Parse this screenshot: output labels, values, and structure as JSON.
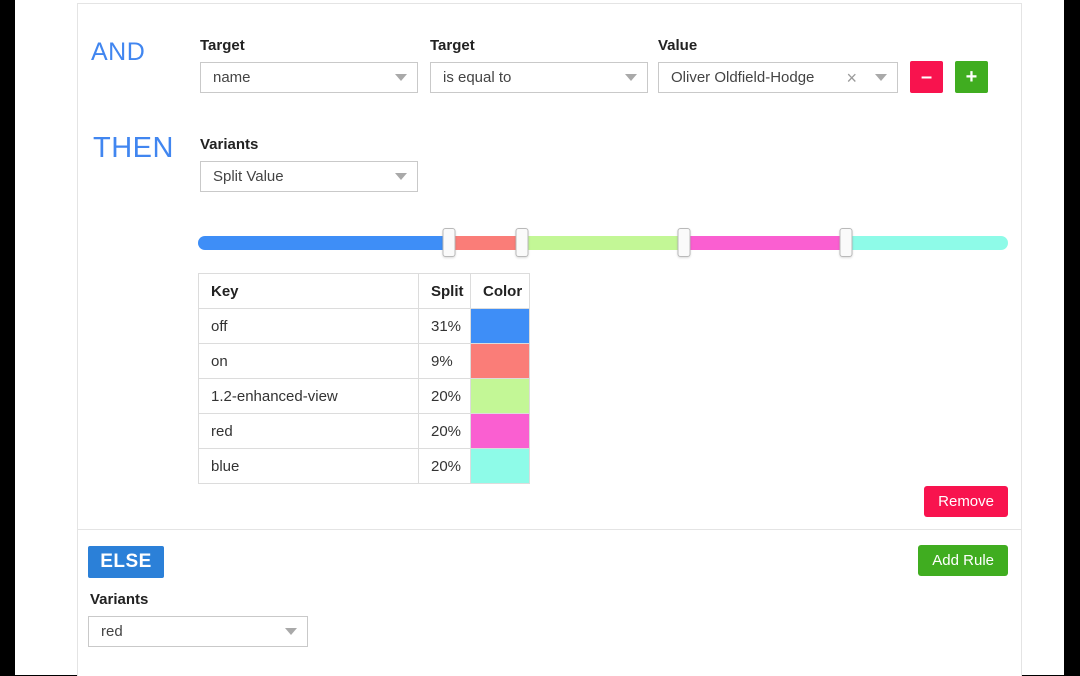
{
  "colors": {
    "accent_text_blue": "#4186f0",
    "else_badge_blue": "#2b80d8",
    "danger_red": "#f8134e",
    "success_green": "#40ad20"
  },
  "rule": {
    "and_label": "AND",
    "condition": {
      "fields": [
        {
          "label": "Target",
          "value": "name",
          "clearable": false
        },
        {
          "label": "Target",
          "value": "is equal to",
          "clearable": false
        },
        {
          "label": "Value",
          "value": "Oliver Oldfield-Hodge",
          "clearable": true
        }
      ],
      "remove_condition_label": "–",
      "add_condition_label": "+"
    },
    "then_label": "THEN",
    "variants_label": "Variants",
    "variants_value": "Split Value",
    "split_table": {
      "headers": [
        "Key",
        "Split",
        "Color"
      ],
      "rows": [
        {
          "key": "off",
          "split": "31%",
          "percent": 31,
          "color": "#3e8ef7"
        },
        {
          "key": "on",
          "split": "9%",
          "percent": 9,
          "color": "#fa7d78"
        },
        {
          "key": "1.2-enhanced-view",
          "split": "20%",
          "percent": 20,
          "color": "#c3f796"
        },
        {
          "key": "red",
          "split": "20%",
          "percent": 20,
          "color": "#fa5fd1"
        },
        {
          "key": "blue",
          "split": "20%",
          "percent": 20,
          "color": "#8efbe8"
        }
      ]
    },
    "remove_label": "Remove"
  },
  "else_section": {
    "else_label": "ELSE",
    "add_rule_label": "Add Rule",
    "variants_label": "Variants",
    "variants_value": "red"
  }
}
